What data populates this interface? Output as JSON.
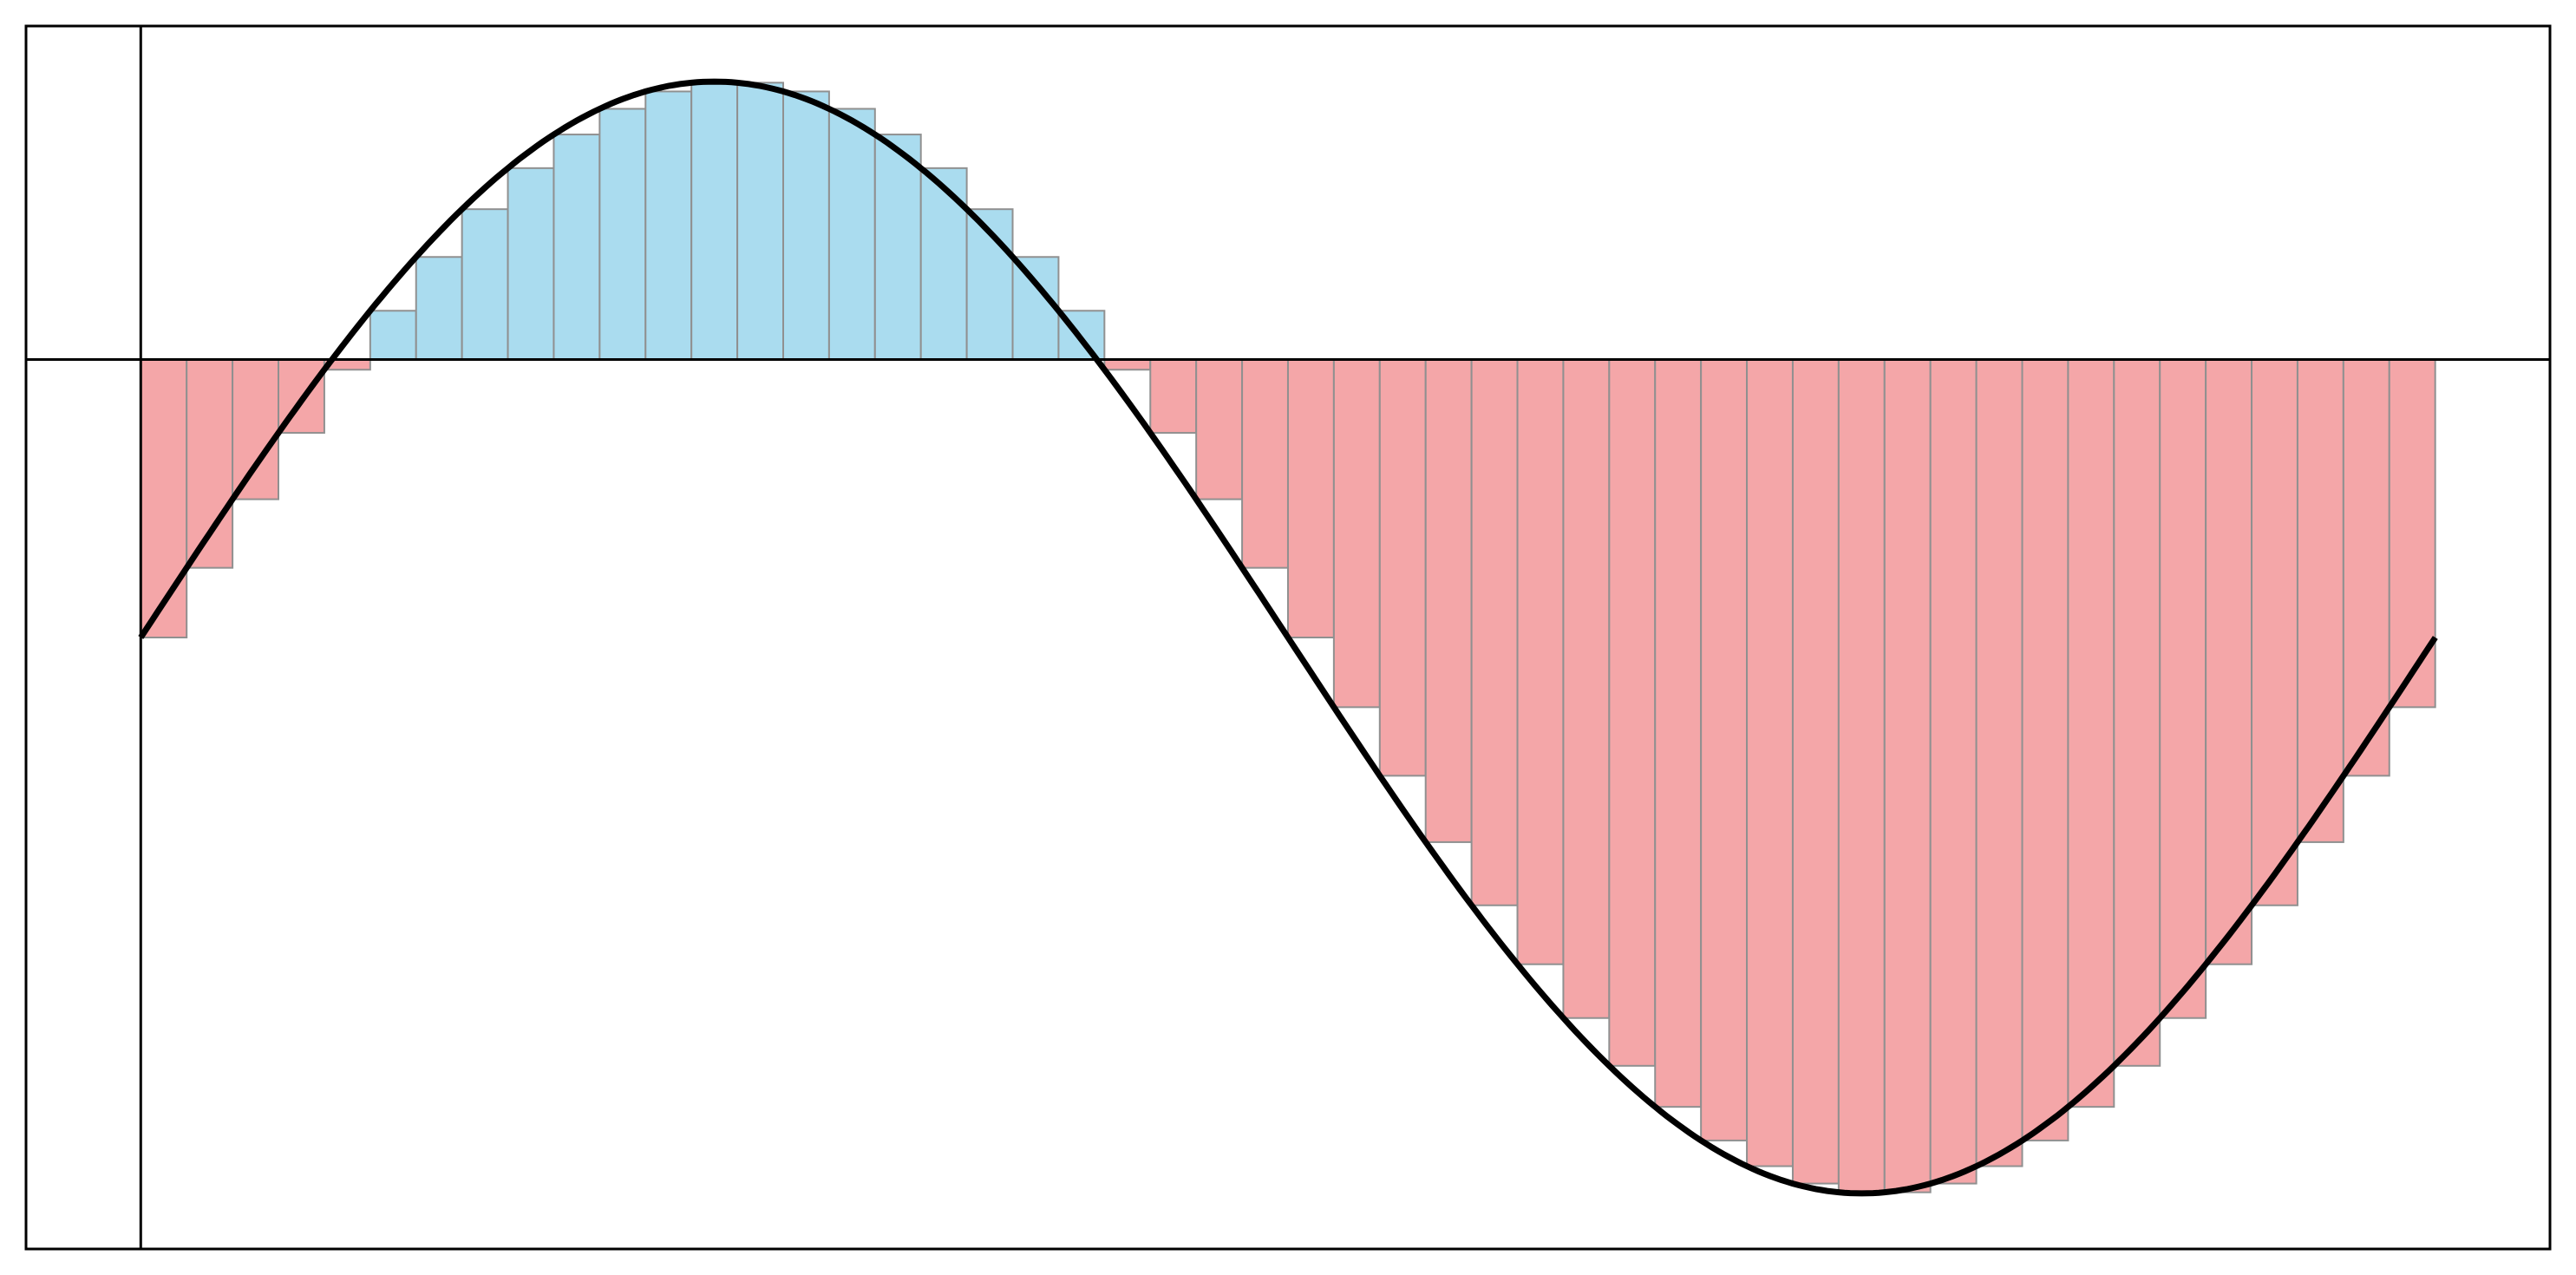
{
  "chart_data": {
    "type": "bar",
    "title": "",
    "xlabel": "",
    "ylabel": "",
    "xlim": [
      -0.3142,
      6.5973
    ],
    "ylim": [
      -3.2,
      1.2
    ],
    "grid": false,
    "curve": {
      "function": "-1 + 2*sin(x)",
      "domain": [
        0,
        6.2832
      ]
    },
    "bars": {
      "method": "left-endpoint",
      "count": 50,
      "bin_width": 0.12566,
      "start": 0,
      "values": [
        -1,
        -0.7493,
        -0.5026,
        -0.2638,
        -0.0365,
        0.1756,
        0.3691,
        0.541,
        0.6887,
        0.8097,
        0.9021,
        0.9646,
        0.9961,
        0.9961,
        0.9646,
        0.9021,
        0.8097,
        0.6887,
        0.541,
        0.3691,
        0.1756,
        -0.0365,
        -0.2638,
        -0.5026,
        -0.7493,
        -1,
        -1.2507,
        -1.4974,
        -1.7362,
        -1.9635,
        -2.1756,
        -2.3691,
        -2.541,
        -2.6887,
        -2.8097,
        -2.9021,
        -2.9646,
        -2.9961,
        -2.9961,
        -2.9646,
        -2.9021,
        -2.8097,
        -2.6887,
        -2.541,
        -2.3691,
        -2.1756,
        -1.9635,
        -1.7362,
        -1.4974,
        -1.2507
      ]
    },
    "colors": {
      "positive": "#aadcef",
      "negative": "#f4a6a8",
      "bar_edge": "#909090",
      "curve": "#000000",
      "axes": "#000000"
    }
  }
}
